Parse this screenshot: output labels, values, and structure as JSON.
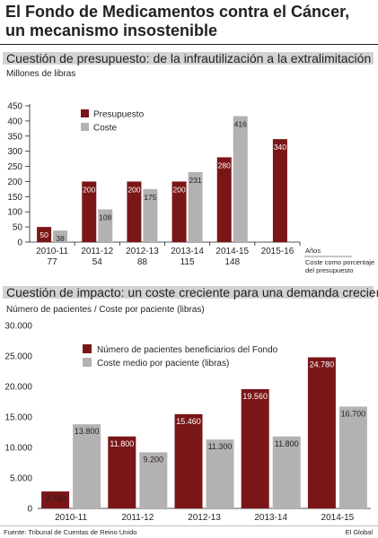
{
  "header": {
    "title_line1": "El Fondo de Medicamentos contra el Cáncer,",
    "title_line2": "un mecanismo insostenible"
  },
  "colors": {
    "primary": "#7a1618",
    "secondary": "#b4b1b2",
    "band": "#d1d3d4",
    "text": "#231f20"
  },
  "chart_data": [
    {
      "type": "bar",
      "title": "Cuestión de presupuesto: de la infrautilización a la extralimitación",
      "ylabel": "Millones de libras",
      "xlabel": "Años",
      "ylim": [
        0,
        450
      ],
      "yticks": [
        0,
        50,
        100,
        150,
        200,
        250,
        300,
        350,
        400,
        450
      ],
      "categories": [
        "2010-11",
        "2011-12",
        "2012-13",
        "2013-14",
        "2014-15",
        "2015-16"
      ],
      "series": [
        {
          "name": "Presupuesto",
          "values": [
            50,
            200,
            200,
            200,
            280,
            340
          ]
        },
        {
          "name": "Coste",
          "values": [
            38,
            108,
            175,
            231,
            416,
            null
          ]
        }
      ],
      "secondary_row": {
        "label": "Coste como porcentaje del presupuesto",
        "values": [
          "77",
          "54",
          "88",
          "115",
          "148",
          ""
        ]
      },
      "legend": "top-left",
      "grid": false
    },
    {
      "type": "bar",
      "title": "Cuestión de impacto: un coste creciente para una demanda creciente",
      "ylabel": "Número de pacientes / Coste por paciente (libras)",
      "ylim": [
        0,
        30000
      ],
      "yticks": [
        0,
        5000,
        10000,
        15000,
        20000,
        25000,
        30000
      ],
      "ytick_labels": [
        "0",
        "5.000",
        "10.000",
        "15.000",
        "20.000",
        "25.000",
        "30.000"
      ],
      "categories": [
        "2010-11",
        "2011-12",
        "2012-13",
        "2013-14",
        "2014-15"
      ],
      "series": [
        {
          "name": "Número de pacientes beneficiarios del Fondo",
          "values": [
            2780,
            11800,
            15460,
            19560,
            24780
          ],
          "labels": [
            "2.780",
            "11.800",
            "15.460",
            "19.560",
            "24.780"
          ]
        },
        {
          "name": "Coste medio por paciente (libras)",
          "values": [
            13800,
            9200,
            11300,
            11800,
            16700
          ],
          "labels": [
            "13.800",
            "9.200",
            "11.300",
            "11.800",
            "16.700"
          ]
        }
      ],
      "legend": "top-left",
      "grid": false
    }
  ],
  "footer": {
    "source": "Fuente: Tribunal de Cuentas de Reino Unido",
    "brand": "El Global"
  }
}
